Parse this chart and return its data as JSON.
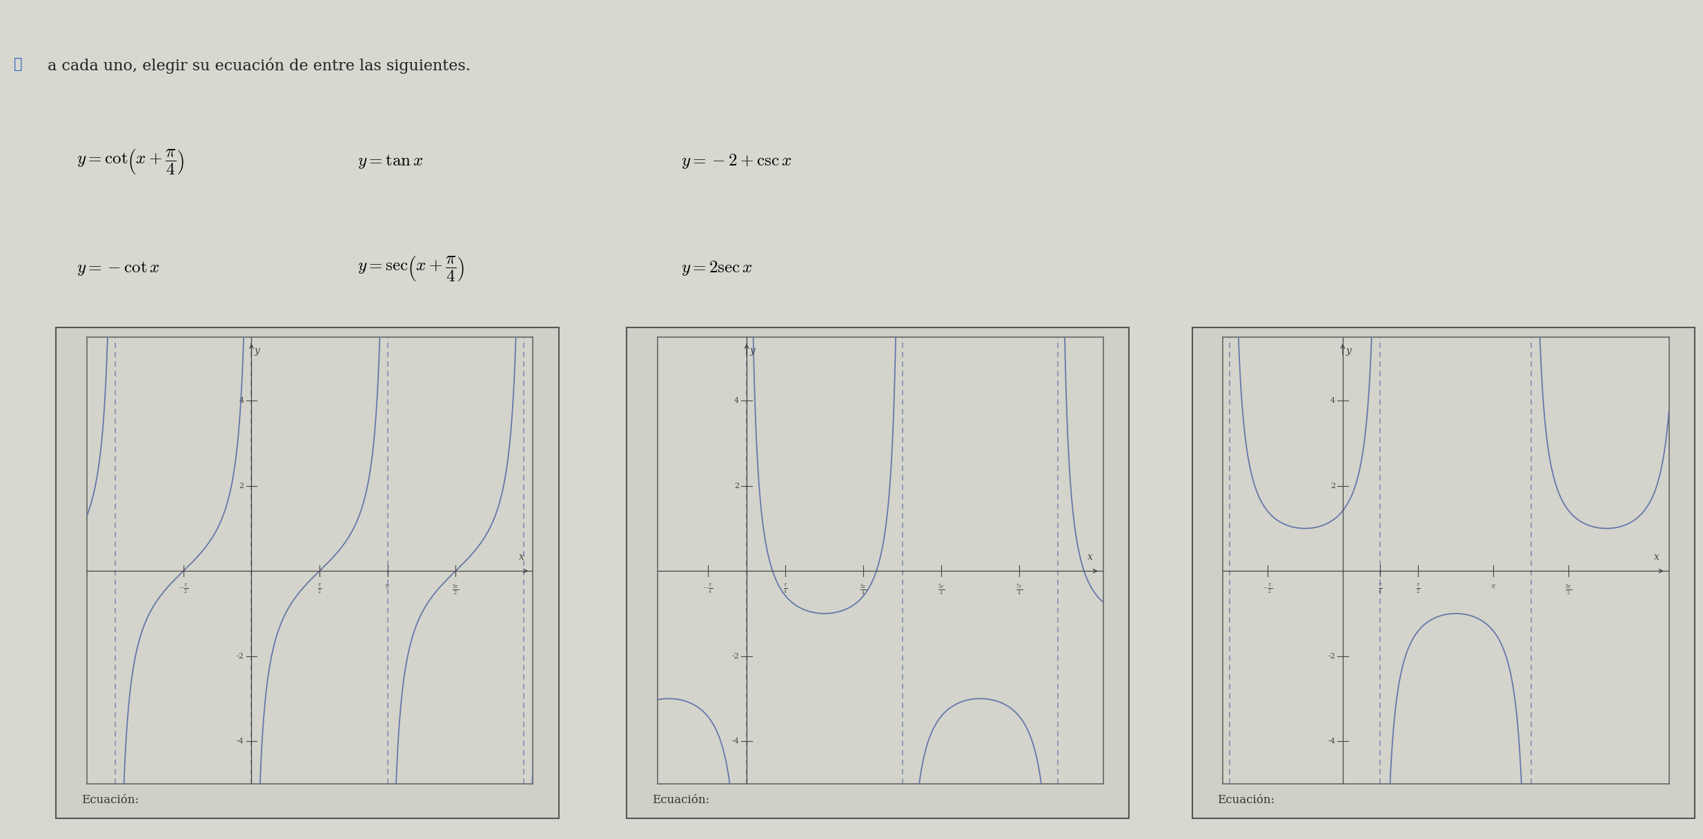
{
  "bg_color": "#d8d8d0",
  "page_bg": "#c8c8c0",
  "header_bg": "#dcdcd4",
  "plot_bg": "#d4d4cc",
  "curve_color": "#6677aa",
  "asym_color": "#6677aa",
  "axis_color": "#444444",
  "tick_color": "#444444",
  "text_color": "#333333",
  "graph1_func": "neg_cot",
  "graph1_xlim": [
    -3.8,
    6.5
  ],
  "graph1_ylim": [
    -5.0,
    5.5
  ],
  "graph1_yticks": [
    -4,
    -2,
    2,
    4
  ],
  "graph1_asymptotes": [
    -3.14159265,
    0.0,
    3.14159265,
    6.2831853
  ],
  "graph2_func": "neg2_plus_csc",
  "graph2_xlim": [
    -1.8,
    7.2
  ],
  "graph2_ylim": [
    -5.0,
    5.5
  ],
  "graph2_yticks": [
    -4,
    -2,
    2,
    4
  ],
  "graph2_asymptotes": [
    0.0,
    3.14159265,
    6.2831853
  ],
  "graph3_func": "sec_x_plus_pi4",
  "graph3_xlim": [
    -2.5,
    6.8
  ],
  "graph3_ylim": [
    -5.0,
    5.5
  ],
  "graph3_yticks": [
    -4,
    -2,
    2,
    4
  ],
  "graph3_asymptotes": [
    -2.35619449,
    0.78539816,
    3.92699082
  ],
  "panel_facecolor": "#d0d0c8",
  "inner_facecolor": "#d4d4cc"
}
